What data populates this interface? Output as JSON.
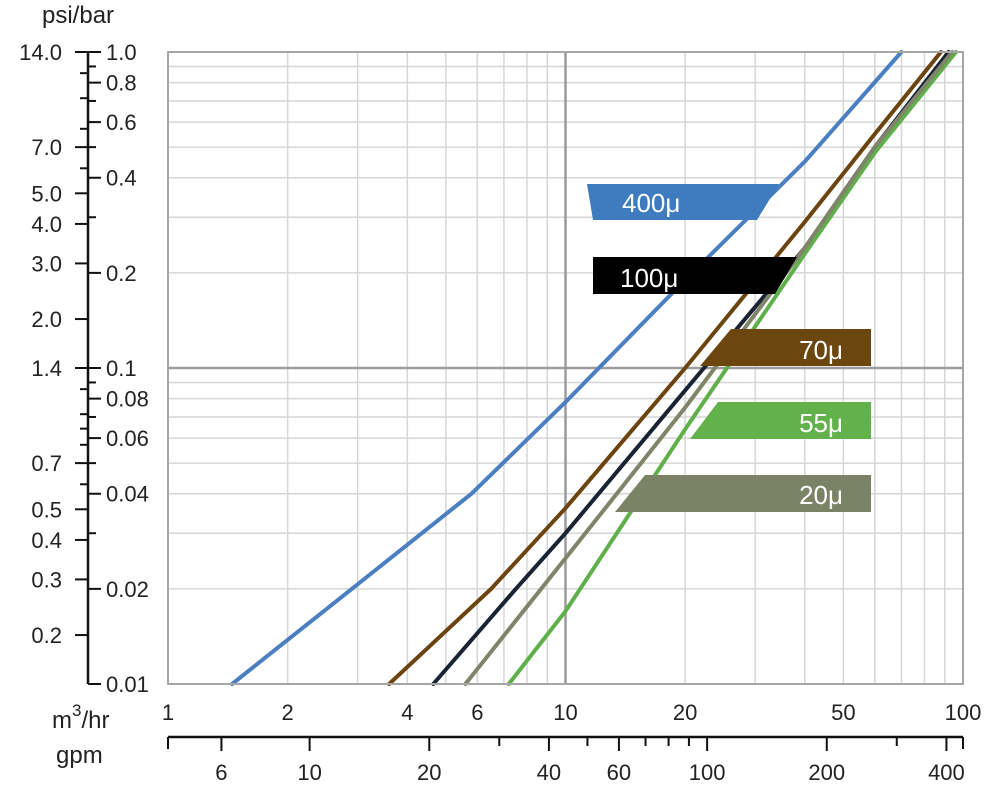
{
  "chart_data": {
    "type": "line",
    "x_scale": "log",
    "y_scale": "log",
    "xlim_m3hr": [
      1,
      100
    ],
    "ylim_bar": [
      0.01,
      1.0
    ],
    "grid": true,
    "units": {
      "pressure": "psi/bar",
      "flow_m3": "m",
      "flow_m3_sup": "3",
      "flow_m3_rest": "/hr",
      "flow_gpm": "gpm"
    },
    "axes": {
      "bar_ticks": [
        {
          "v": 0.01,
          "label": "0.01"
        },
        {
          "v": 0.02,
          "label": "0.02"
        },
        {
          "v": 0.04,
          "label": "0.04"
        },
        {
          "v": 0.06,
          "label": "0.06"
        },
        {
          "v": 0.08,
          "label": "0.08"
        },
        {
          "v": 0.1,
          "label": "0.1"
        },
        {
          "v": 0.2,
          "label": "0.2"
        },
        {
          "v": 0.4,
          "label": "0.4"
        },
        {
          "v": 0.6,
          "label": "0.6"
        },
        {
          "v": 0.8,
          "label": "0.8"
        },
        {
          "v": 1.0,
          "label": "1.0"
        }
      ],
      "psi_ticks": [
        {
          "v": 0.2,
          "label": "0.2"
        },
        {
          "v": 0.3,
          "label": "0.3"
        },
        {
          "v": 0.4,
          "label": "0.4"
        },
        {
          "v": 0.5,
          "label": "0.5"
        },
        {
          "v": 0.7,
          "label": "0.7"
        },
        {
          "v": 1.4,
          "label": "1.4"
        },
        {
          "v": 2.0,
          "label": "2.0"
        },
        {
          "v": 3.0,
          "label": "3.0"
        },
        {
          "v": 4.0,
          "label": "4.0"
        },
        {
          "v": 5.0,
          "label": "5.0"
        },
        {
          "v": 7.0,
          "label": "7.0"
        },
        {
          "v": 14.0,
          "label": "14.0"
        }
      ],
      "m3hr_ticks": [
        {
          "v": 1,
          "label": "1"
        },
        {
          "v": 2,
          "label": "2"
        },
        {
          "v": 4,
          "label": "4"
        },
        {
          "v": 6,
          "label": "6"
        },
        {
          "v": 10,
          "label": "10"
        },
        {
          "v": 20,
          "label": "20"
        },
        {
          "v": 50,
          "label": "50"
        },
        {
          "v": 100,
          "label": "100"
        }
      ],
      "gpm_ticks": [
        {
          "v": 6,
          "label": "6"
        },
        {
          "v": 10,
          "label": "10"
        },
        {
          "v": 20,
          "label": "20"
        },
        {
          "v": 40,
          "label": "40"
        },
        {
          "v": 60,
          "label": "60"
        },
        {
          "v": 100,
          "label": "100"
        },
        {
          "v": 200,
          "label": "200"
        },
        {
          "v": 400,
          "label": "400"
        }
      ]
    },
    "series": [
      {
        "name": "400μ",
        "color": "#4a7fc1",
        "label_color": "#3f7bbf",
        "x": [
          1.45,
          2.9,
          5.8,
          10,
          20,
          40,
          70
        ],
        "y": [
          0.01,
          0.02,
          0.04,
          0.078,
          0.19,
          0.45,
          1.0
        ]
      },
      {
        "name": "100μ",
        "color": "#1a2333",
        "label_color": "#000000",
        "x": [
          4.65,
          7.5,
          10,
          20,
          40,
          60,
          92
        ],
        "y": [
          0.01,
          0.02,
          0.03,
          0.085,
          0.24,
          0.5,
          1.0
        ]
      },
      {
        "name": "70μ",
        "color": "#6b4410",
        "label_color": "#6b460f",
        "x": [
          3.6,
          6.5,
          10,
          20,
          40,
          60,
          88
        ],
        "y": [
          0.01,
          0.02,
          0.036,
          0.1,
          0.29,
          0.55,
          1.0
        ]
      },
      {
        "name": "55μ",
        "color": "#5fb04a",
        "label_color": "#62b14a",
        "x": [
          7.2,
          10,
          20,
          40,
          60,
          96
        ],
        "y": [
          0.01,
          0.017,
          0.064,
          0.23,
          0.48,
          1.0
        ]
      },
      {
        "name": "20μ",
        "color": "#7e8569",
        "label_color": "#7b8266",
        "x": [
          5.6,
          10,
          20,
          40,
          60,
          94
        ],
        "y": [
          0.01,
          0.025,
          0.075,
          0.24,
          0.5,
          1.0
        ]
      }
    ]
  }
}
